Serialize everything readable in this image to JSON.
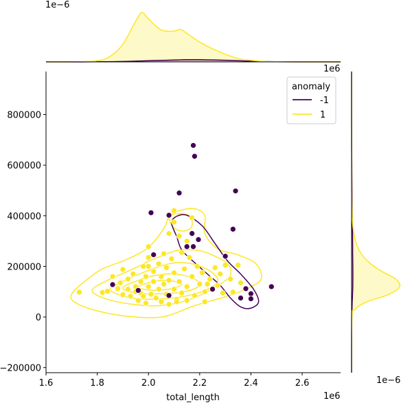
{
  "chart_data": {
    "type": "scatter",
    "subtype": "jointplot with KDE contours and marginal KDE",
    "xlabel": "total_length",
    "ylabel": "",
    "x_offset_label": "1e6",
    "y_offset_label": "",
    "top_marginal_offset_label": "1e−6",
    "right_marginal_offset_label": "1e−6",
    "xlim": [
      1.6,
      2.75
    ],
    "ylim": [
      -220000,
      970000
    ],
    "x_ticks": [
      1.6,
      1.8,
      2.0,
      2.2,
      2.4,
      2.6
    ],
    "x_tick_labels": [
      "1.6",
      "1.8",
      "2.0",
      "2.2",
      "2.4",
      "2.6"
    ],
    "y_ticks": [
      -200000,
      0,
      200000,
      400000,
      600000,
      800000
    ],
    "y_tick_labels": [
      "−200000",
      "0",
      "200000",
      "400000",
      "600000",
      "800000"
    ],
    "grid": false,
    "legend": {
      "title": "anomaly",
      "placement": "top-right",
      "entries": [
        {
          "label": "-1",
          "color": "#440154"
        },
        {
          "label": "1",
          "color": "#fde725"
        }
      ]
    },
    "series": [
      {
        "name": "-1",
        "color": "#440154",
        "points": [
          [
            2.175,
            678000
          ],
          [
            2.18,
            635000
          ],
          [
            2.34,
            498000
          ],
          [
            2.12,
            490000
          ],
          [
            2.01,
            412000
          ],
          [
            2.08,
            402000
          ],
          [
            2.33,
            347000
          ],
          [
            2.17,
            330000
          ],
          [
            2.195,
            306000
          ],
          [
            2.15,
            278000
          ],
          [
            2.175,
            278000
          ],
          [
            2.3,
            240000
          ],
          [
            2.02,
            246000
          ],
          [
            2.25,
            110000
          ],
          [
            2.38,
            112000
          ],
          [
            2.4,
            92000
          ],
          [
            2.4,
            72000
          ],
          [
            2.36,
            75000
          ],
          [
            2.48,
            120000
          ],
          [
            1.96,
            105000
          ],
          [
            1.86,
            128000
          ],
          [
            2.08,
            85000
          ]
        ],
        "kde_contours": [
          [
            [
              2.11,
              398000
            ],
            [
              2.15,
              402000
            ],
            [
              2.21,
              360000
            ],
            [
              2.26,
              290000
            ],
            [
              2.31,
              220000
            ],
            [
              2.36,
              170000
            ],
            [
              2.41,
              110000
            ],
            [
              2.43,
              60000
            ],
            [
              2.4,
              35000
            ],
            [
              2.36,
              40000
            ],
            [
              2.32,
              75000
            ],
            [
              2.28,
              125000
            ],
            [
              2.23,
              170000
            ],
            [
              2.18,
              215000
            ],
            [
              2.13,
              265000
            ],
            [
              2.11,
              318000
            ],
            [
              2.09,
              372000
            ]
          ]
        ]
      },
      {
        "name": "1",
        "color": "#fde725",
        "points": [
          [
            1.73,
            98000
          ],
          [
            1.82,
            97000
          ],
          [
            1.84,
            102000
          ],
          [
            1.86,
            160000
          ],
          [
            1.88,
            112000
          ],
          [
            1.89,
            135000
          ],
          [
            1.9,
            188000
          ],
          [
            1.9,
            88000
          ],
          [
            1.92,
            150000
          ],
          [
            1.92,
            110000
          ],
          [
            1.93,
            82000
          ],
          [
            1.94,
            170000
          ],
          [
            1.95,
            120000
          ],
          [
            1.96,
            65000
          ],
          [
            1.97,
            140000
          ],
          [
            1.97,
            95000
          ],
          [
            1.98,
            200000
          ],
          [
            1.99,
            160000
          ],
          [
            1.99,
            55000
          ],
          [
            2.0,
            120000
          ],
          [
            2.0,
            235000
          ],
          [
            2.0,
            278000
          ],
          [
            2.01,
            90000
          ],
          [
            2.02,
            180000
          ],
          [
            2.02,
            140000
          ],
          [
            2.03,
            75000
          ],
          [
            2.04,
            210000
          ],
          [
            2.04,
            110000
          ],
          [
            2.05,
            160000
          ],
          [
            2.05,
            60000
          ],
          [
            2.06,
            130000
          ],
          [
            2.07,
            90000
          ],
          [
            2.07,
            195000
          ],
          [
            2.08,
            50000
          ],
          [
            2.08,
            145000
          ],
          [
            2.09,
            230000
          ],
          [
            2.1,
            110000
          ],
          [
            2.1,
            175000
          ],
          [
            2.1,
            420000
          ],
          [
            2.1,
            375000
          ],
          [
            2.11,
            70000
          ],
          [
            2.12,
            320000
          ],
          [
            2.12,
            140000
          ],
          [
            2.13,
            255000
          ],
          [
            2.13,
            95000
          ],
          [
            2.14,
            190000
          ],
          [
            2.15,
            120000
          ],
          [
            2.15,
            65000
          ],
          [
            2.16,
            235000
          ],
          [
            2.17,
            160000
          ],
          [
            2.17,
            392000
          ],
          [
            2.18,
            85000
          ],
          [
            2.19,
            200000
          ],
          [
            2.2,
            130000
          ],
          [
            2.21,
            175000
          ],
          [
            2.22,
            100000
          ],
          [
            2.22,
            60000
          ],
          [
            2.24,
            150000
          ],
          [
            2.25,
            110000
          ],
          [
            2.26,
            195000
          ],
          [
            2.27,
            125000
          ],
          [
            2.28,
            170000
          ],
          [
            2.3,
            205000
          ],
          [
            2.32,
            150000
          ],
          [
            2.33,
            98000
          ],
          [
            2.35,
            205000
          ],
          [
            2.36,
            135000
          ],
          [
            2.29,
            95000
          ],
          [
            2.23,
            130000
          ],
          [
            1.95,
            100000
          ],
          [
            1.98,
            82000
          ],
          [
            2.06,
            250000
          ],
          [
            2.08,
            330000
          ],
          [
            2.0,
            200000
          ],
          [
            2.11,
            60000
          ],
          [
            2.15,
            300000
          ]
        ],
        "kde_contours": [
          [
            [
              1.7,
              90000
            ],
            [
              1.75,
              140000
            ],
            [
              1.82,
              190000
            ],
            [
              1.91,
              225000
            ],
            [
              2.0,
              275000
            ],
            [
              2.06,
              350000
            ],
            [
              2.08,
              395000
            ],
            [
              2.12,
              420000
            ],
            [
              2.18,
              428000
            ],
            [
              2.22,
              400000
            ],
            [
              2.22,
              330000
            ],
            [
              2.27,
              270000
            ],
            [
              2.35,
              245000
            ],
            [
              2.42,
              210000
            ],
            [
              2.44,
              150000
            ],
            [
              2.38,
              110000
            ],
            [
              2.3,
              80000
            ],
            [
              2.18,
              45000
            ],
            [
              2.05,
              0
            ],
            [
              1.9,
              5000
            ],
            [
              1.78,
              30000
            ],
            [
              1.71,
              60000
            ]
          ],
          [
            [
              1.78,
              105000
            ],
            [
              1.85,
              150000
            ],
            [
              1.93,
              185000
            ],
            [
              2.0,
              220000
            ],
            [
              2.06,
              245000
            ],
            [
              2.12,
              265000
            ],
            [
              2.2,
              262000
            ],
            [
              2.26,
              240000
            ],
            [
              2.31,
              210000
            ],
            [
              2.32,
              165000
            ],
            [
              2.28,
              130000
            ],
            [
              2.22,
              95000
            ],
            [
              2.14,
              62000
            ],
            [
              2.04,
              45000
            ],
            [
              1.94,
              50000
            ],
            [
              1.84,
              70000
            ]
          ],
          [
            [
              1.85,
              110000
            ],
            [
              1.92,
              150000
            ],
            [
              1.99,
              180000
            ],
            [
              2.06,
              205000
            ],
            [
              2.12,
              215000
            ],
            [
              2.19,
              205000
            ],
            [
              2.25,
              175000
            ],
            [
              2.27,
              140000
            ],
            [
              2.22,
              105000
            ],
            [
              2.13,
              80000
            ],
            [
              2.02,
              70000
            ],
            [
              1.92,
              78000
            ]
          ],
          [
            [
              1.9,
              115000
            ],
            [
              1.96,
              145000
            ],
            [
              2.03,
              165000
            ],
            [
              2.1,
              170000
            ],
            [
              2.17,
              155000
            ],
            [
              2.2,
              125000
            ],
            [
              2.14,
              100000
            ],
            [
              2.04,
              92000
            ],
            [
              1.95,
              95000
            ]
          ],
          [
            [
              1.96,
              118000
            ],
            [
              2.01,
              138000
            ],
            [
              2.07,
              145000
            ],
            [
              2.13,
              132000
            ],
            [
              2.09,
              112000
            ],
            [
              2.01,
              106000
            ]
          ],
          [
            [
              2.08,
              395000
            ],
            [
              2.11,
              408000
            ],
            [
              2.16,
              400000
            ],
            [
              2.17,
              360000
            ],
            [
              2.14,
              340000
            ],
            [
              2.1,
              352000
            ]
          ]
        ]
      }
    ],
    "marginal_top": {
      "x": [
        1.6,
        1.7,
        1.8,
        1.85,
        1.9,
        1.95,
        1.975,
        2.0,
        2.05,
        2.1,
        2.125,
        2.15,
        2.2,
        2.25,
        2.3,
        2.35,
        2.4,
        2.45,
        2.5,
        2.6,
        2.75
      ],
      "density_1": [
        0.0,
        0.005,
        0.1,
        0.5,
        1.6,
        3.7,
        4.5,
        3.9,
        2.9,
        2.8,
        2.95,
        2.6,
        1.8,
        1.2,
        0.7,
        0.3,
        0.15,
        0.05,
        0.02,
        0.0,
        0.0
      ],
      "density_neg1": [
        0.0,
        0.0,
        0.01,
        0.02,
        0.04,
        0.07,
        0.09,
        0.11,
        0.14,
        0.17,
        0.19,
        0.2,
        0.2,
        0.18,
        0.15,
        0.11,
        0.07,
        0.04,
        0.02,
        0.0,
        0.0
      ],
      "peak_1_label": "4.5"
    },
    "marginal_right": {
      "y": [
        -220000,
        0,
        30000,
        60000,
        90000,
        120000,
        150000,
        180000,
        210000,
        250000,
        300000,
        350000,
        400000,
        500000,
        700000,
        970000
      ],
      "density_1": [
        0.0,
        0.05,
        0.4,
        1.9,
        4.7,
        6.0,
        5.5,
        3.8,
        2.4,
        1.2,
        0.5,
        0.2,
        0.08,
        0.02,
        0.0,
        0.0
      ],
      "density_neg1": [
        0.0,
        0.02,
        0.05,
        0.08,
        0.12,
        0.15,
        0.16,
        0.16,
        0.15,
        0.14,
        0.13,
        0.11,
        0.09,
        0.05,
        0.01,
        0.0
      ]
    }
  }
}
